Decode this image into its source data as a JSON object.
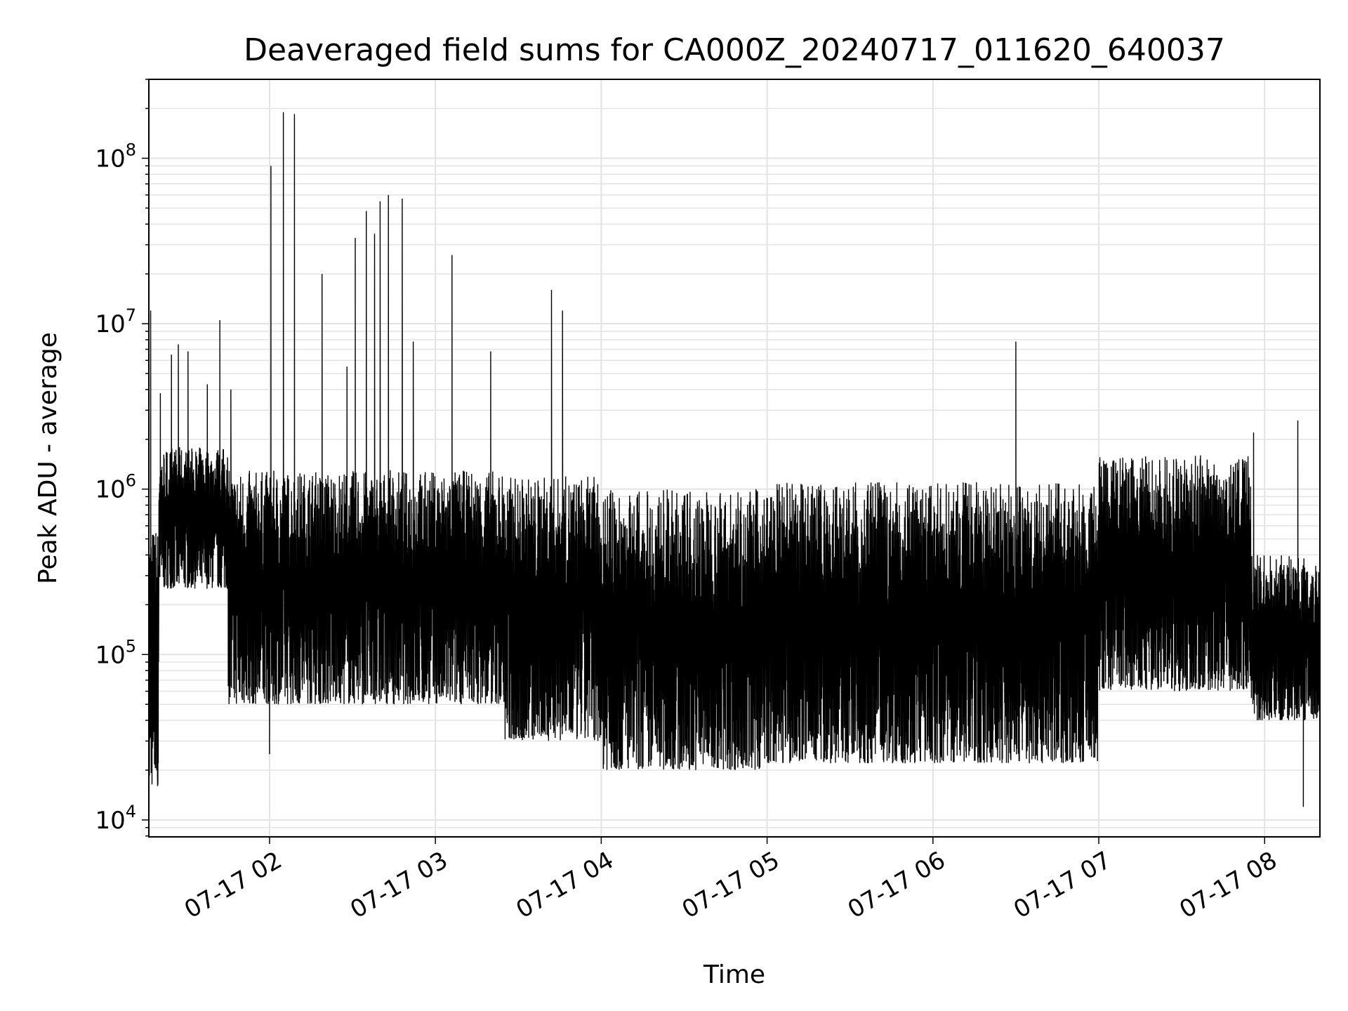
{
  "chart_data": {
    "type": "line",
    "title": "Deaveraged field sums for CA000Z_20240717_011620_640037",
    "xlabel": "Time",
    "ylabel": "Peak ADU - average",
    "yscale": "log",
    "ylim": [
      7900,
      300000000
    ],
    "xlim": [
      "2024-07-17 01:16:20",
      "2024-07-17 08:20:00"
    ],
    "grid": true,
    "line_color": "#000000",
    "grid_color": "#e3e3e3",
    "x_ticks": [
      {
        "label": "07-17 02",
        "time": "2024-07-17 02:00"
      },
      {
        "label": "07-17 03",
        "time": "2024-07-17 03:00"
      },
      {
        "label": "07-17 04",
        "time": "2024-07-17 04:00"
      },
      {
        "label": "07-17 05",
        "time": "2024-07-17 05:00"
      },
      {
        "label": "07-17 06",
        "time": "2024-07-17 06:00"
      },
      {
        "label": "07-17 07",
        "time": "2024-07-17 07:00"
      },
      {
        "label": "07-17 08",
        "time": "2024-07-17 08:00"
      }
    ],
    "y_ticks": [
      {
        "base": "10",
        "exp": "4",
        "value": 10000
      },
      {
        "base": "10",
        "exp": "5",
        "value": 100000
      },
      {
        "base": "10",
        "exp": "6",
        "value": 1000000
      },
      {
        "base": "10",
        "exp": "7",
        "value": 10000000
      },
      {
        "base": "10",
        "exp": "8",
        "value": 100000000
      }
    ],
    "series": [
      {
        "style": "noisy oscillating trace (dense alternation between peak and trough)",
        "segments": [
          {
            "start": "2024-07-17 01:16:20",
            "end": "2024-07-17 01:20:00",
            "low": 16000,
            "high": 600000
          },
          {
            "start": "2024-07-17 01:20:00",
            "end": "2024-07-17 01:45:00",
            "low": 250000,
            "high": 1800000
          },
          {
            "start": "2024-07-17 01:45:00",
            "end": "2024-07-17 03:25:00",
            "low": 50000,
            "high": 1300000
          },
          {
            "start": "2024-07-17 03:25:00",
            "end": "2024-07-17 04:00:00",
            "low": 30000,
            "high": 1200000
          },
          {
            "start": "2024-07-17 04:00:00",
            "end": "2024-07-17 05:00:00",
            "low": 20000,
            "high": 1000000
          },
          {
            "start": "2024-07-17 05:00:00",
            "end": "2024-07-17 06:00:00",
            "low": 22000,
            "high": 1100000
          },
          {
            "start": "2024-07-17 06:00:00",
            "end": "2024-07-17 07:00:00",
            "low": 22000,
            "high": 1100000
          },
          {
            "start": "2024-07-17 07:00:00",
            "end": "2024-07-17 07:55:00",
            "low": 60000,
            "high": 1600000
          },
          {
            "start": "2024-07-17 07:55:00",
            "end": "2024-07-17 08:20:00",
            "low": 40000,
            "high": 400000
          }
        ],
        "spikes": [
          {
            "time": "2024-07-17 01:17:00",
            "value": 12000000
          },
          {
            "time": "2024-07-17 01:19:30",
            "value": 16000
          },
          {
            "time": "2024-07-17 01:20:30",
            "value": 3800000
          },
          {
            "time": "2024-07-17 01:24:30",
            "value": 6500000
          },
          {
            "time": "2024-07-17 01:27:00",
            "value": 7500000
          },
          {
            "time": "2024-07-17 01:30:30",
            "value": 6800000
          },
          {
            "time": "2024-07-17 01:37:30",
            "value": 4300000
          },
          {
            "time": "2024-07-17 01:42:00",
            "value": 10500000
          },
          {
            "time": "2024-07-17 01:46:00",
            "value": 4000000
          },
          {
            "time": "2024-07-17 02:00:00",
            "value": 25000
          },
          {
            "time": "2024-07-17 02:00:30",
            "value": 90000000
          },
          {
            "time": "2024-07-17 02:05:00",
            "value": 190000000
          },
          {
            "time": "2024-07-17 02:09:00",
            "value": 185000000
          },
          {
            "time": "2024-07-17 02:19:00",
            "value": 20000000
          },
          {
            "time": "2024-07-17 02:28:00",
            "value": 5500000
          },
          {
            "time": "2024-07-17 02:31:00",
            "value": 33000000
          },
          {
            "time": "2024-07-17 02:35:00",
            "value": 48000000
          },
          {
            "time": "2024-07-17 02:38:00",
            "value": 35000000
          },
          {
            "time": "2024-07-17 02:40:00",
            "value": 55000000
          },
          {
            "time": "2024-07-17 02:43:00",
            "value": 60000000
          },
          {
            "time": "2024-07-17 02:48:00",
            "value": 57000000
          },
          {
            "time": "2024-07-17 02:52:00",
            "value": 7800000
          },
          {
            "time": "2024-07-17 03:06:00",
            "value": 26000000
          },
          {
            "time": "2024-07-17 03:20:00",
            "value": 6800000
          },
          {
            "time": "2024-07-17 03:42:00",
            "value": 16000000
          },
          {
            "time": "2024-07-17 03:46:00",
            "value": 12000000
          },
          {
            "time": "2024-07-17 06:30:00",
            "value": 7800000
          },
          {
            "time": "2024-07-17 07:56:00",
            "value": 2200000
          },
          {
            "time": "2024-07-17 08:12:00",
            "value": 2600000
          },
          {
            "time": "2024-07-17 08:14:00",
            "value": 12000
          }
        ]
      }
    ]
  }
}
